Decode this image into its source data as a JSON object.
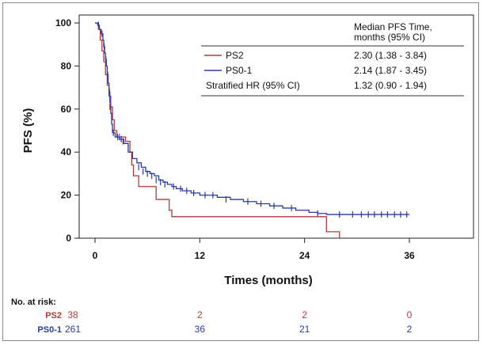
{
  "chart_data": {
    "type": "line",
    "title": "",
    "xlabel": "Times (months)",
    "ylabel": "PFS (%)",
    "xlim": [
      0,
      36
    ],
    "ylim": [
      0,
      100
    ],
    "x_ticks": [
      "0",
      "12",
      "24",
      "36"
    ],
    "y_ticks": [
      "0",
      "20",
      "40",
      "60",
      "80",
      "100"
    ],
    "grid": false,
    "legend_placement": "top-right",
    "legend": {
      "header": "Median PFS Time, months (95% CI)",
      "rows": [
        {
          "label": "PS2",
          "value": "2.30 (1.38 - 3.84)"
        },
        {
          "label": "PS0-1",
          "value": "2.14 (1.87 - 3.45)"
        },
        {
          "label": "Stratified HR (95% CI)",
          "value": "1.32 (0.90 - 1.94)"
        }
      ]
    },
    "series": [
      {
        "name": "PS2",
        "color": "#b03a3a",
        "steps": [
          [
            0,
            100
          ],
          [
            0.4,
            97
          ],
          [
            0.6,
            92
          ],
          [
            0.8,
            87
          ],
          [
            1.0,
            82
          ],
          [
            1.2,
            76
          ],
          [
            1.4,
            71
          ],
          [
            1.6,
            66
          ],
          [
            1.8,
            61
          ],
          [
            2.0,
            55
          ],
          [
            2.2,
            50
          ],
          [
            2.5,
            47
          ],
          [
            3.5,
            45
          ],
          [
            4.0,
            40
          ],
          [
            4.2,
            34
          ],
          [
            4.4,
            29
          ],
          [
            5.0,
            24
          ],
          [
            7.0,
            18
          ],
          [
            8.5,
            13
          ],
          [
            8.8,
            10
          ],
          [
            26.5,
            3
          ],
          [
            28.0,
            0
          ]
        ],
        "censored": [
          [
            1.7,
            61
          ],
          [
            2.8,
            47
          ],
          [
            3.2,
            45
          ]
        ]
      },
      {
        "name": "PS0-1",
        "color": "#2b3aa6",
        "steps": [
          [
            0,
            100
          ],
          [
            0.3,
            99
          ],
          [
            0.5,
            97
          ],
          [
            0.7,
            95
          ],
          [
            0.9,
            92
          ],
          [
            1.0,
            89
          ],
          [
            1.1,
            86
          ],
          [
            1.2,
            83
          ],
          [
            1.3,
            80
          ],
          [
            1.4,
            76
          ],
          [
            1.5,
            72
          ],
          [
            1.6,
            68
          ],
          [
            1.7,
            63
          ],
          [
            1.8,
            58
          ],
          [
            1.9,
            53
          ],
          [
            2.0,
            49
          ],
          [
            2.3,
            47
          ],
          [
            2.8,
            46
          ],
          [
            3.3,
            44
          ],
          [
            3.8,
            40
          ],
          [
            4.3,
            37
          ],
          [
            4.8,
            35
          ],
          [
            5.3,
            33
          ],
          [
            5.8,
            31
          ],
          [
            6.3,
            30
          ],
          [
            6.8,
            29
          ],
          [
            7.3,
            27
          ],
          [
            7.8,
            26
          ],
          [
            8.3,
            25
          ],
          [
            8.8,
            24
          ],
          [
            9.3,
            23
          ],
          [
            10.0,
            22
          ],
          [
            11.0,
            21
          ],
          [
            12.0,
            20
          ],
          [
            13.0,
            20
          ],
          [
            14.0,
            19
          ],
          [
            15.5,
            18
          ],
          [
            17.0,
            17
          ],
          [
            18.5,
            16
          ],
          [
            20.0,
            15
          ],
          [
            21.5,
            14
          ],
          [
            23.0,
            13
          ],
          [
            24.5,
            12
          ],
          [
            25.5,
            11.5
          ],
          [
            26.5,
            11
          ],
          [
            36.0,
            11
          ]
        ],
        "censored": [
          [
            0.4,
            99
          ],
          [
            0.8,
            95
          ],
          [
            1.05,
            89
          ],
          [
            1.25,
            83
          ],
          [
            1.45,
            76
          ],
          [
            1.65,
            68
          ],
          [
            2.1,
            49
          ],
          [
            2.6,
            47
          ],
          [
            3.0,
            46
          ],
          [
            5.0,
            33
          ],
          [
            5.5,
            31
          ],
          [
            6.0,
            30
          ],
          [
            6.5,
            29
          ],
          [
            7.0,
            27
          ],
          [
            7.5,
            26
          ],
          [
            8.0,
            25
          ],
          [
            9.0,
            24
          ],
          [
            9.8,
            23
          ],
          [
            10.5,
            22
          ],
          [
            11.3,
            21
          ],
          [
            12.6,
            20
          ],
          [
            13.5,
            20
          ],
          [
            15.0,
            18
          ],
          [
            17.5,
            17
          ],
          [
            19.0,
            16
          ],
          [
            20.5,
            15
          ],
          [
            22.5,
            14
          ],
          [
            25.5,
            11.5
          ],
          [
            28.0,
            11
          ],
          [
            29.5,
            11
          ],
          [
            30.5,
            11
          ],
          [
            31.3,
            11
          ],
          [
            32.0,
            11
          ],
          [
            32.8,
            11
          ],
          [
            33.5,
            11
          ],
          [
            34.3,
            11
          ],
          [
            35.0,
            11
          ],
          [
            35.7,
            11
          ]
        ]
      }
    ]
  },
  "risk_table": {
    "header": "No. at risk:",
    "rows": [
      {
        "label": "PS2",
        "color": "#b03a3a",
        "values": [
          "38",
          "2",
          "2",
          "0"
        ]
      },
      {
        "label": "PS0-1",
        "color": "#2b3aa6",
        "values": [
          "261",
          "36",
          "21",
          "2"
        ]
      }
    ]
  }
}
